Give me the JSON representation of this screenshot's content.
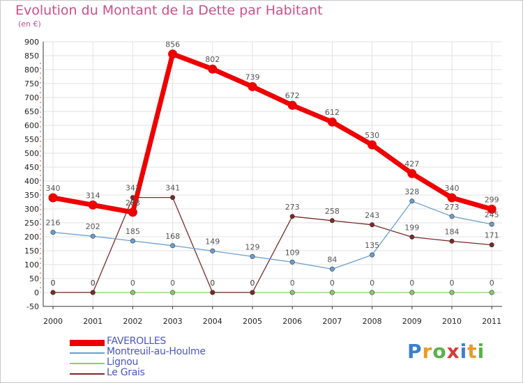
{
  "title": "Evolution du Montant de la Dette par Habitant",
  "subtitle": "(en €)",
  "logo": {
    "text": "Proxiti",
    "letter_colors": [
      "#3a7fd0",
      "#e89a2a",
      "#5ab04a",
      "#d83a3a",
      "#3a7fd0",
      "#e89a2a",
      "#5ab04a"
    ]
  },
  "chart_data": {
    "type": "line",
    "title": "Evolution du Montant de la Dette par Habitant",
    "ylabel": "(en €)",
    "xlabel": "",
    "ylim": [
      -50,
      900
    ],
    "y_ticks": [
      -50,
      0,
      50,
      100,
      150,
      200,
      250,
      300,
      350,
      400,
      450,
      500,
      550,
      600,
      650,
      700,
      750,
      800,
      850,
      900
    ],
    "categories": [
      "2000",
      "2001",
      "2002",
      "2003",
      "2004",
      "2005",
      "2006",
      "2007",
      "2008",
      "2009",
      "2010",
      "2011"
    ],
    "grid": true,
    "legend_position": "bottom-left",
    "series": [
      {
        "name": "FAVEROLLES",
        "color": "#ee0000",
        "values": [
          340,
          314,
          288,
          856,
          802,
          739,
          672,
          612,
          530,
          427,
          340,
          299
        ]
      },
      {
        "name": "Montreuil-au-Houlme",
        "color": "#6a9fd0",
        "values": [
          216,
          202,
          185,
          168,
          149,
          129,
          109,
          84,
          135,
          328,
          273,
          245
        ]
      },
      {
        "name": "Lignou",
        "color": "#88d066",
        "values": [
          0,
          0,
          0,
          0,
          0,
          0,
          0,
          0,
          0,
          0,
          0,
          0
        ]
      },
      {
        "name": "Le Grais",
        "color": "#7a2a2a",
        "values": [
          0,
          0,
          341,
          341,
          0,
          0,
          273,
          258,
          243,
          199,
          184,
          171
        ]
      }
    ]
  }
}
